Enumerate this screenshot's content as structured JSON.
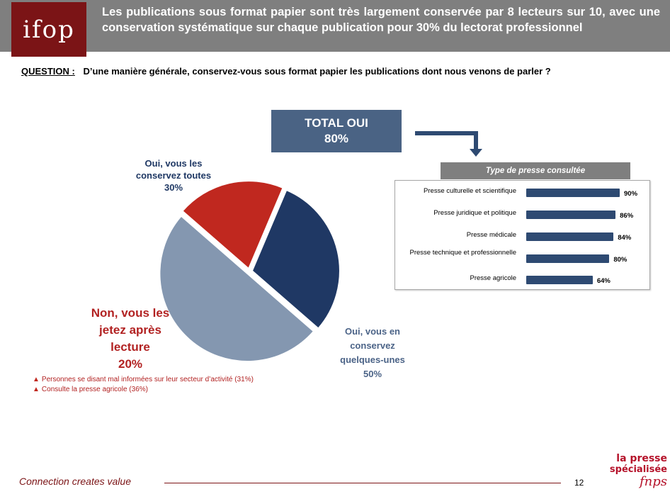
{
  "header": {
    "logo_text": "ifop",
    "headline": "Les publications sous format papier sont très largement conservée par 8 lecteurs sur 10, avec une conservation systématique sur chaque publication pour 30% du lectorat professionnel"
  },
  "question": {
    "label": "QUESTION :",
    "text": "D’une manière générale, conservez-vous sous format papier les publications dont nous venons de parler ?"
  },
  "total": {
    "line1": "TOTAL  OUI",
    "line2": "80%"
  },
  "pie_labels": {
    "all_1": "Oui, vous les",
    "all_2": "conservez toutes",
    "all_3": "30%",
    "some_1": "Oui, vous en",
    "some_2": "conservez",
    "some_3": "quelques-unes",
    "some_4": "50%",
    "non_1": "Non, vous les",
    "non_2": "jetez après",
    "non_3": "lecture",
    "non_4": "20%"
  },
  "notes": [
    "Personnes se disant mal informées sur leur secteur d’activité (31%)",
    "Consulte la presse agricole (36%)"
  ],
  "bar_panel": {
    "title": "Type de presse consultée"
  },
  "footer": {
    "tagline": "Connection creates value",
    "page": "12"
  },
  "brand": {
    "line1": "la presse",
    "line2": "spécialisée",
    "line3": "fnps"
  },
  "colors": {
    "all": "#1f3864",
    "some": "#8497b0",
    "non": "#c0281f",
    "bar": "#2e4a72"
  },
  "chart_data": [
    {
      "type": "pie",
      "categories": [
        "Oui, vous les conservez toutes",
        "Oui, vous en conservez quelques-unes",
        "Non, vous les jetez après lecture"
      ],
      "values": [
        30,
        50,
        20
      ]
    },
    {
      "type": "bar",
      "title": "Type de presse consultée",
      "categories": [
        "Presse culturelle et scientifique",
        "Presse juridique et politique",
        "Presse médicale",
        "Presse technique et professionnelle",
        "Presse agricole"
      ],
      "values": [
        90,
        86,
        84,
        80,
        64
      ],
      "value_labels": [
        "90%",
        "86%",
        "84%",
        "80%",
        "64%"
      ]
    }
  ]
}
